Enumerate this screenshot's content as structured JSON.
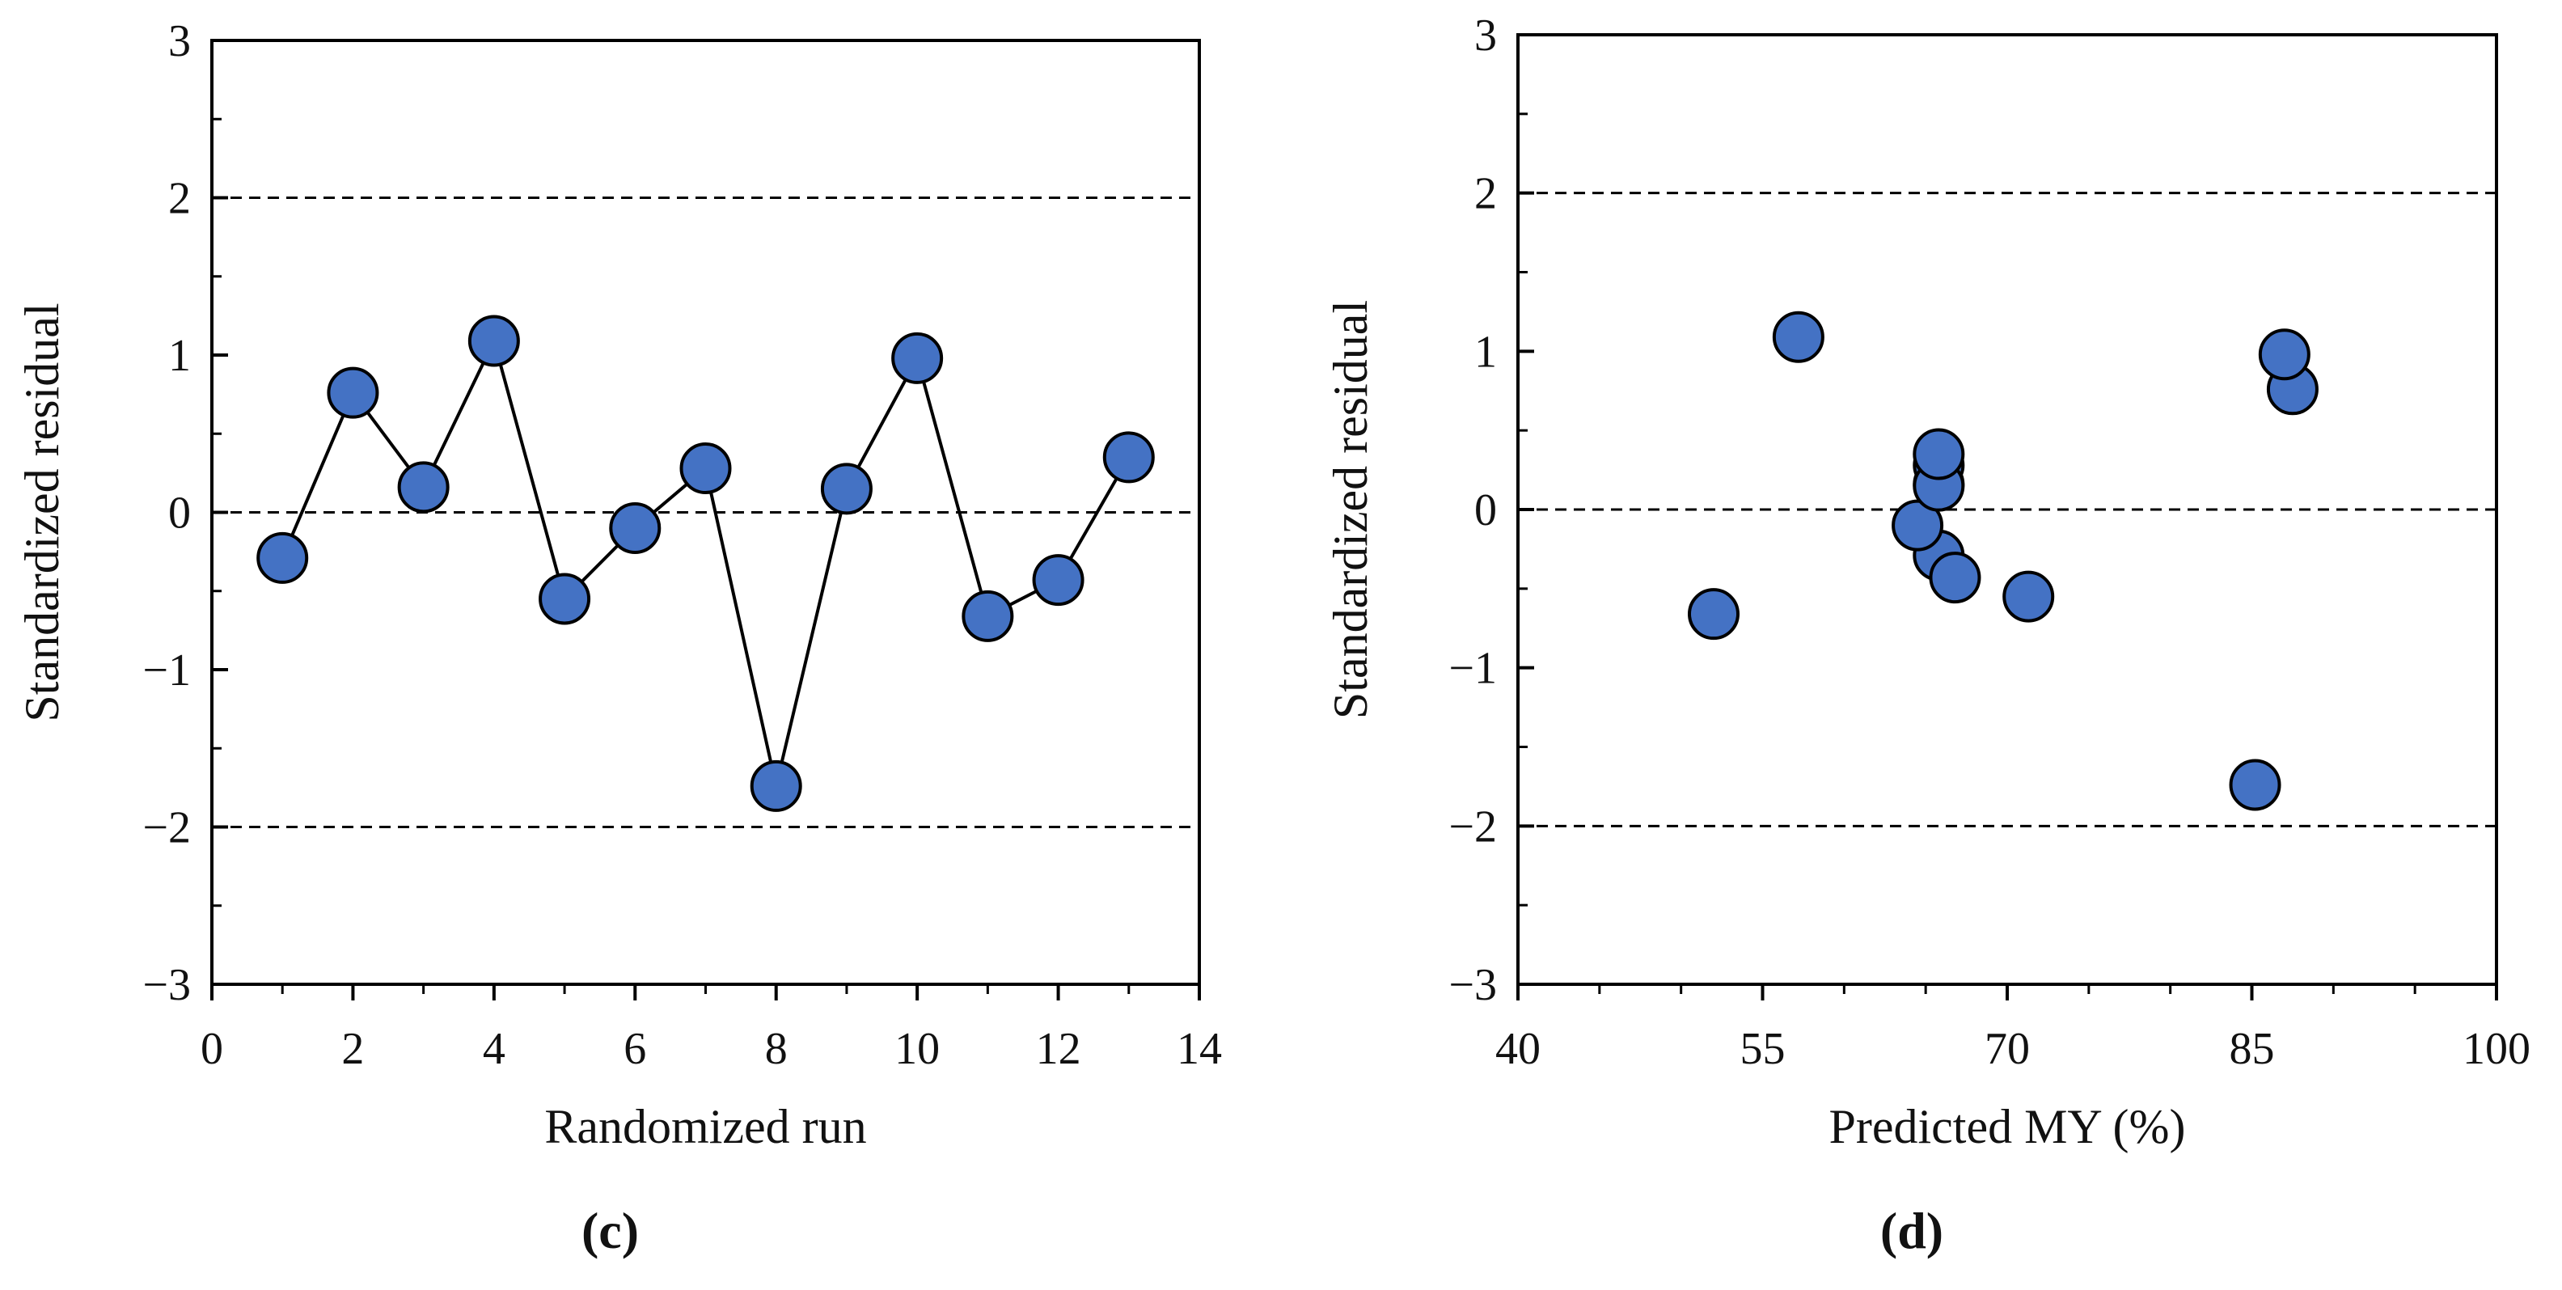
{
  "colors": {
    "marker_fill": "#4472C4",
    "marker_stroke": "#000000",
    "line": "#000000",
    "axis": "#000000",
    "reference_line": "#000000"
  },
  "chart_data": [
    {
      "type": "line",
      "panel_label": "(c)",
      "title": "",
      "xlabel": "Randomized run",
      "ylabel": "Standardized residual",
      "xlim": [
        0,
        14
      ],
      "ylim": [
        -3,
        3
      ],
      "xticks": [
        0,
        2,
        4,
        6,
        8,
        10,
        12,
        14
      ],
      "xtick_labels": [
        "0",
        "2",
        "4",
        "6",
        "8",
        "10",
        "12",
        "14"
      ],
      "x_minor_ticks": [
        1,
        3,
        5,
        7,
        9,
        11,
        13
      ],
      "yticks": [
        -3,
        -2,
        -1,
        0,
        1,
        2,
        3
      ],
      "ytick_labels": [
        "−3",
        "−2",
        "−1",
        "0",
        "1",
        "2",
        "3"
      ],
      "y_minor_ticks": [
        -2.5,
        -1.5,
        -0.5,
        0.5,
        1.5,
        2.5
      ],
      "reference_lines": [
        -2,
        0,
        2
      ],
      "grid": false,
      "connect_points": true,
      "x": [
        1,
        2,
        3,
        4,
        5,
        6,
        7,
        8,
        9,
        10,
        11,
        12,
        13
      ],
      "y": [
        -0.29,
        0.76,
        0.16,
        1.09,
        -0.55,
        -0.1,
        0.28,
        -1.74,
        0.15,
        0.98,
        -0.66,
        -0.43,
        0.35
      ]
    },
    {
      "type": "scatter",
      "panel_label": "(d)",
      "title": "",
      "xlabel": "Predicted MY (%)",
      "ylabel": "Standardized residual",
      "xlim": [
        40,
        100
      ],
      "ylim": [
        -3,
        3
      ],
      "xticks": [
        40,
        55,
        70,
        85,
        100
      ],
      "xtick_labels": [
        "40",
        "55",
        "70",
        "85",
        "100"
      ],
      "x_minor_ticks": [
        45,
        50,
        60,
        65,
        75,
        80,
        90,
        95
      ],
      "yticks": [
        -3,
        -2,
        -1,
        0,
        1,
        2,
        3
      ],
      "ytick_labels": [
        "−3",
        "−2",
        "−1",
        "0",
        "1",
        "2",
        "3"
      ],
      "y_minor_ticks": [
        -2.5,
        -1.5,
        -0.5,
        0.5,
        1.5,
        2.5
      ],
      "reference_lines": [
        -2,
        0,
        2
      ],
      "grid": false,
      "connect_points": false,
      "x": [
        65.8,
        87.5,
        65.8,
        57.2,
        71.3,
        64.5,
        65.8,
        85.2,
        65.8,
        87.0,
        52.0,
        66.8,
        65.8
      ],
      "y": [
        -0.29,
        0.76,
        0.16,
        1.09,
        -0.55,
        -0.1,
        0.28,
        -1.74,
        0.15,
        0.98,
        -0.66,
        -0.43,
        0.35
      ]
    }
  ]
}
